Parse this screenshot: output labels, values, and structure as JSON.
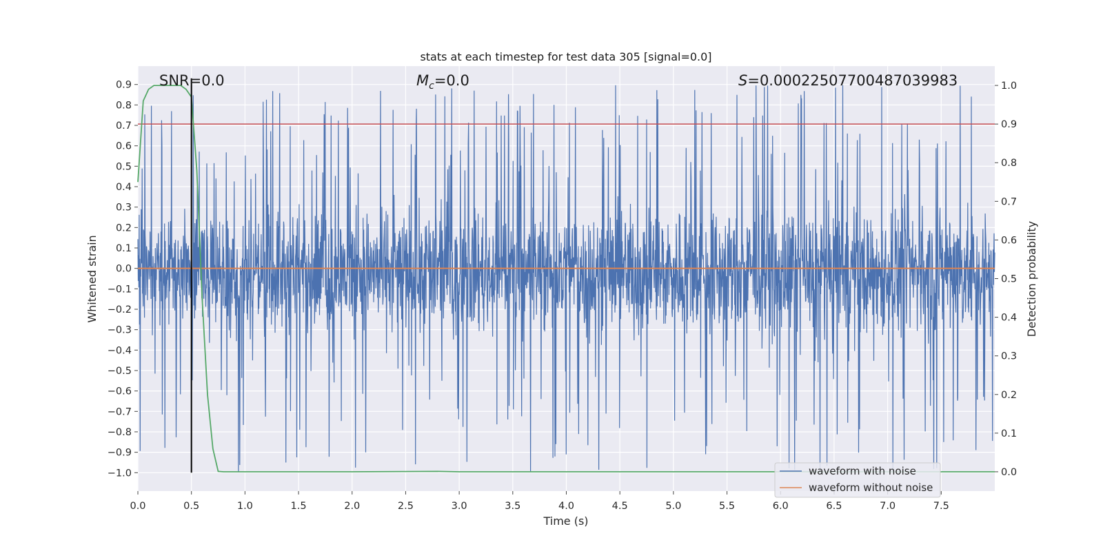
{
  "chart_data": {
    "type": "line",
    "title": "stats at each timestep for test data 305 [signal=0.0]",
    "xlabel": "Time (s)",
    "ylabel_left": "Whitened strain",
    "ylabel_right": "Detection probability",
    "xlim": [
      0.0,
      8.0
    ],
    "ylim_left": [
      -1.09,
      0.99
    ],
    "ylim_right": [
      -0.05,
      1.05
    ],
    "xticks": [
      "0.0",
      "0.5",
      "1.0",
      "1.5",
      "2.0",
      "2.5",
      "3.0",
      "3.5",
      "4.0",
      "4.5",
      "5.0",
      "5.5",
      "6.0",
      "6.5",
      "7.0",
      "7.5"
    ],
    "yticks_left": [
      "0.9",
      "0.8",
      "0.7",
      "0.6",
      "0.5",
      "0.4",
      "0.3",
      "0.2",
      "0.1",
      "0.0",
      "−0.1",
      "−0.2",
      "−0.3",
      "−0.4",
      "−0.5",
      "−0.6",
      "−0.7",
      "−0.8",
      "−0.9",
      "−1.0"
    ],
    "yticks_right": [
      "1.0",
      "0.9",
      "0.8",
      "0.7",
      "0.6",
      "0.5",
      "0.4",
      "0.3",
      "0.2",
      "0.1",
      "0.0"
    ],
    "annotations": {
      "snr": "SNR=0.0",
      "mc_symbol": "M",
      "mc_sub": "c",
      "mc_value": "=0.0",
      "s_symbol": "S",
      "s_value": "=0.00022507700487039983"
    },
    "threshold": {
      "value": 0.9,
      "axis": "right",
      "color": "#c44e52"
    },
    "marker_time": 0.5,
    "series": [
      {
        "name": "waveform with noise",
        "axis": "left",
        "color": "#4c72b0",
        "kind": "noise",
        "typical_range": [
          -0.45,
          0.42
        ],
        "peak_max": 0.9,
        "peak_min": -1.0
      },
      {
        "name": "waveform without noise",
        "axis": "left",
        "color": "#dd8452",
        "x": [
          0.0,
          8.0
        ],
        "y": [
          0.0,
          0.0
        ]
      },
      {
        "name": "detection probability",
        "axis": "right",
        "color": "#55a868",
        "x": [
          0.0,
          0.05,
          0.1,
          0.15,
          0.2,
          0.25,
          0.3,
          0.35,
          0.4,
          0.45,
          0.5,
          0.55,
          0.6,
          0.65,
          0.7,
          0.75,
          0.8,
          2.0,
          2.8,
          3.0,
          8.0
        ],
        "y": [
          0.75,
          0.96,
          0.99,
          1.0,
          1.0,
          1.0,
          1.0,
          1.0,
          1.0,
          0.99,
          0.97,
          0.78,
          0.45,
          0.2,
          0.06,
          0.001,
          0.0,
          0.0,
          0.001,
          0.0,
          0.0
        ]
      }
    ],
    "legend": {
      "placement": "lower-right",
      "entries": [
        "waveform with noise",
        "waveform without noise"
      ]
    }
  }
}
